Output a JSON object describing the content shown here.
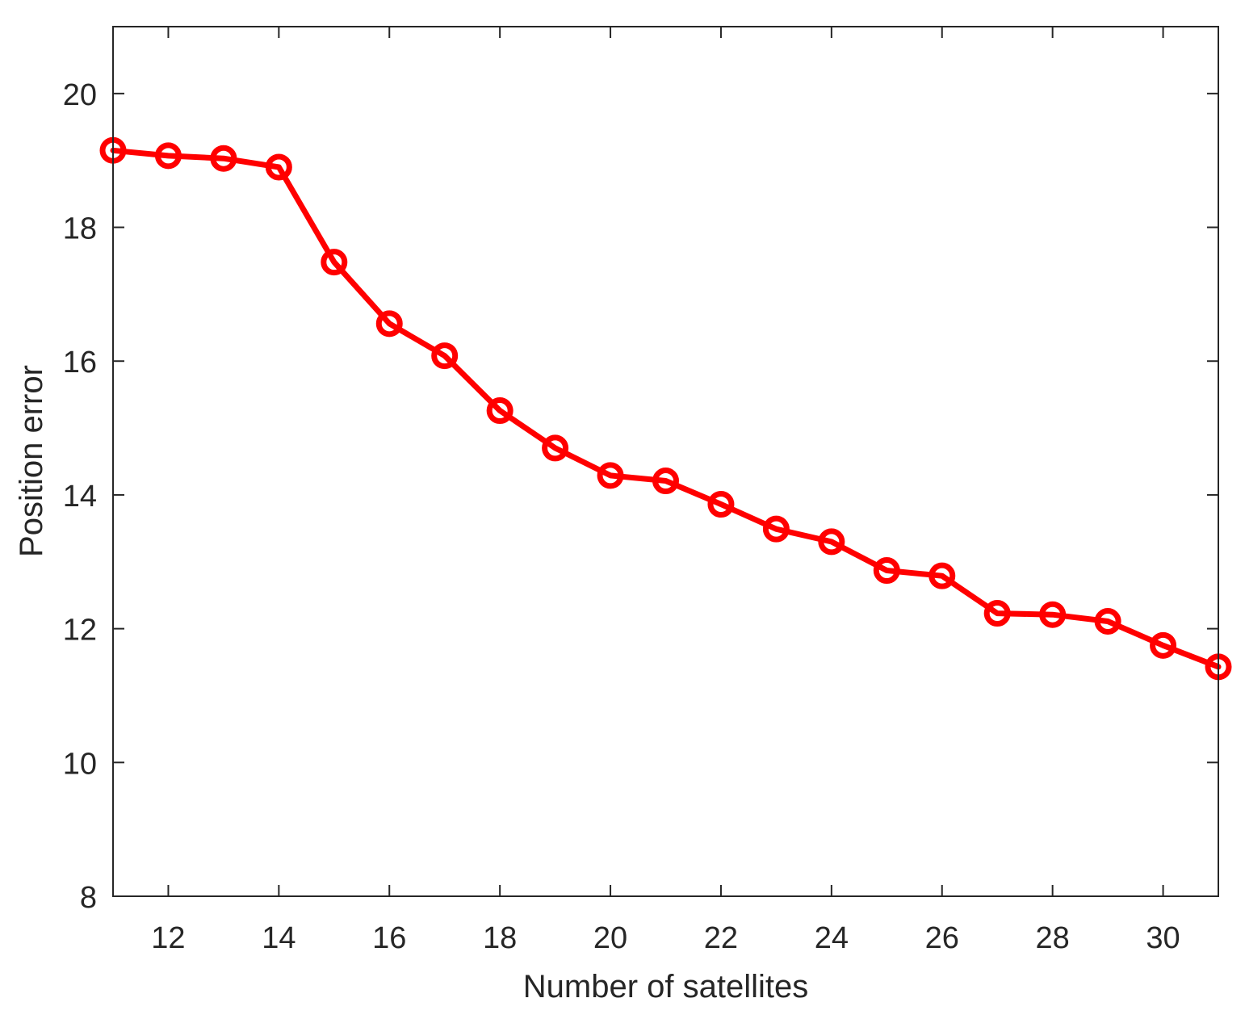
{
  "chart_data": {
    "type": "line",
    "title": "",
    "xlabel": "Number of satellites",
    "ylabel": "Position error",
    "xlim": [
      11,
      31
    ],
    "ylim": [
      8,
      21
    ],
    "x_ticks": [
      12,
      14,
      16,
      18,
      20,
      22,
      24,
      26,
      28,
      30
    ],
    "y_ticks": [
      8,
      10,
      12,
      14,
      16,
      18,
      20
    ],
    "grid": false,
    "legend": "none",
    "series": [
      {
        "color": "#ff0000",
        "marker": "circle",
        "x": [
          11,
          12,
          13,
          14,
          15,
          16,
          17,
          18,
          19,
          20,
          21,
          22,
          23,
          24,
          25,
          26,
          27,
          28,
          29,
          30,
          31
        ],
        "values": [
          19.15,
          19.07,
          19.03,
          18.9,
          17.48,
          16.56,
          16.08,
          15.26,
          14.7,
          14.29,
          14.21,
          13.86,
          13.49,
          13.3,
          12.87,
          12.79,
          12.23,
          12.21,
          12.11,
          11.75,
          11.43
        ]
      }
    ]
  }
}
